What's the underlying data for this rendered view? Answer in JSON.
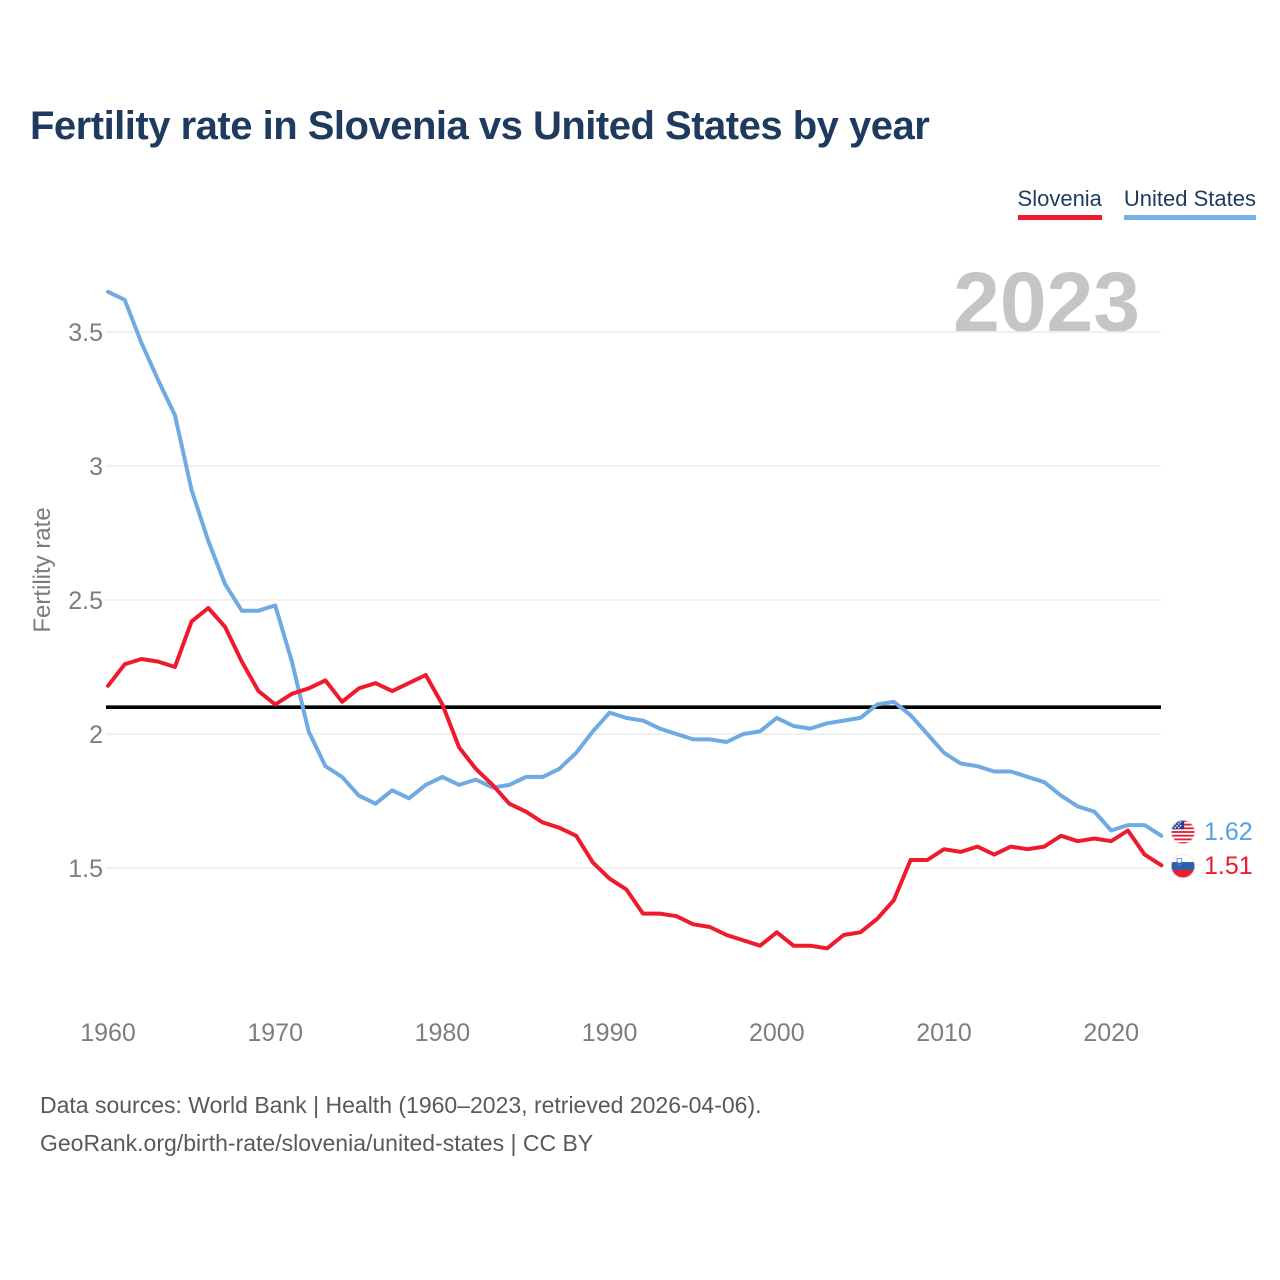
{
  "page": {
    "title": "Fertility rate in Slovenia vs United States by year",
    "watermark_year": "2023"
  },
  "legend": [
    {
      "label": "Slovenia",
      "color": "#ee1b2c"
    },
    {
      "label": "United States",
      "color": "#74b1e6"
    }
  ],
  "end_labels": [
    {
      "series": "United States",
      "value": "1.62",
      "color": "#55a0e6",
      "icon": "us-flag-icon"
    },
    {
      "series": "Slovenia",
      "value": "1.51",
      "color": "#ed1c2e",
      "icon": "slovenia-flag-icon"
    }
  ],
  "footer": {
    "line1": "Data sources: World Bank | Health (1960–2023, retrieved 2026-04-06).",
    "line2": "GeoRank.org/birth-rate/slovenia/united-states | CC BY"
  },
  "chart_data": {
    "type": "line",
    "title": "Fertility rate in Slovenia vs United States by year",
    "xlabel": "",
    "ylabel": "Fertility rate",
    "grid": true,
    "legend_position": "top-right",
    "xlim": [
      1960,
      2023
    ],
    "ylim": [
      1.1,
      3.7
    ],
    "x_ticks": [
      1960,
      1970,
      1980,
      1990,
      2000,
      2010,
      2020
    ],
    "y_ticks": [
      1.5,
      2,
      2.5,
      3,
      3.5
    ],
    "reference_line": 2.1,
    "x": [
      1960,
      1961,
      1962,
      1963,
      1964,
      1965,
      1966,
      1967,
      1968,
      1969,
      1970,
      1971,
      1972,
      1973,
      1974,
      1975,
      1976,
      1977,
      1978,
      1979,
      1980,
      1981,
      1982,
      1983,
      1984,
      1985,
      1986,
      1987,
      1988,
      1989,
      1990,
      1991,
      1992,
      1993,
      1994,
      1995,
      1996,
      1997,
      1998,
      1999,
      2000,
      2001,
      2002,
      2003,
      2004,
      2005,
      2006,
      2007,
      2008,
      2009,
      2010,
      2011,
      2012,
      2013,
      2014,
      2015,
      2016,
      2017,
      2018,
      2019,
      2020,
      2021,
      2022,
      2023
    ],
    "series": [
      {
        "name": "United States",
        "color": "#6faae3",
        "values": [
          3.65,
          3.62,
          3.46,
          3.32,
          3.19,
          2.91,
          2.72,
          2.56,
          2.46,
          2.46,
          2.48,
          2.27,
          2.01,
          1.88,
          1.84,
          1.77,
          1.74,
          1.79,
          1.76,
          1.81,
          1.84,
          1.81,
          1.83,
          1.8,
          1.81,
          1.84,
          1.84,
          1.87,
          1.93,
          2.01,
          2.08,
          2.06,
          2.05,
          2.02,
          2.0,
          1.98,
          1.98,
          1.97,
          2.0,
          2.01,
          2.06,
          2.03,
          2.02,
          2.04,
          2.05,
          2.06,
          2.11,
          2.12,
          2.07,
          2.0,
          1.93,
          1.89,
          1.88,
          1.86,
          1.86,
          1.84,
          1.82,
          1.77,
          1.73,
          1.71,
          1.64,
          1.66,
          1.66,
          1.62
        ]
      },
      {
        "name": "Slovenia",
        "color": "#ee1b2c",
        "values": [
          2.18,
          2.26,
          2.28,
          2.27,
          2.25,
          2.42,
          2.47,
          2.4,
          2.27,
          2.16,
          2.11,
          2.15,
          2.17,
          2.2,
          2.12,
          2.17,
          2.19,
          2.16,
          2.19,
          2.22,
          2.11,
          1.95,
          1.87,
          1.81,
          1.74,
          1.71,
          1.67,
          1.65,
          1.62,
          1.52,
          1.46,
          1.42,
          1.33,
          1.33,
          1.32,
          1.29,
          1.28,
          1.25,
          1.23,
          1.21,
          1.26,
          1.21,
          1.21,
          1.2,
          1.25,
          1.26,
          1.31,
          1.38,
          1.53,
          1.53,
          1.57,
          1.56,
          1.58,
          1.55,
          1.58,
          1.57,
          1.58,
          1.62,
          1.6,
          1.61,
          1.6,
          1.64,
          1.55,
          1.51
        ]
      }
    ]
  }
}
